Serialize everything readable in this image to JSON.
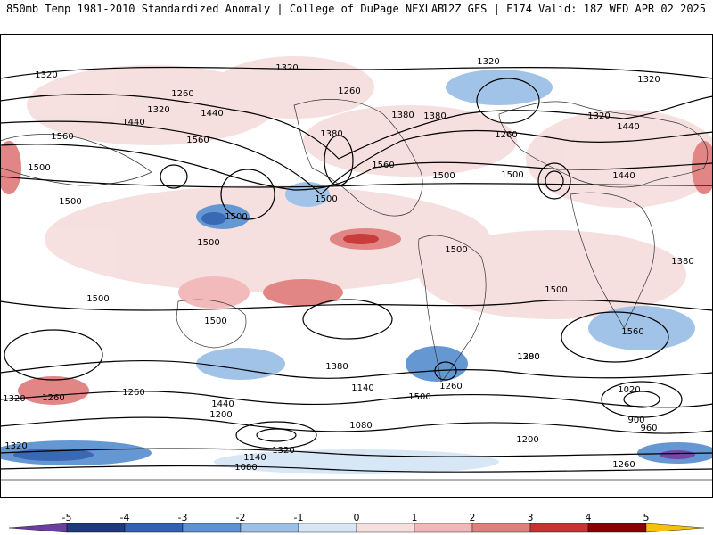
{
  "header": {
    "left": "850mb Temp 1981-2010 Standardized Anomaly | College of DuPage NEXLAB",
    "right": "12Z GFS | F174 Valid: 18Z WED APR 02 2025"
  },
  "legend": {
    "ticks": [
      "-5",
      "-4",
      "-3",
      "-2",
      "-1",
      "0",
      "1",
      "2",
      "3",
      "4",
      "5"
    ],
    "colors": [
      "#6a3fa0",
      "#1f3a7a",
      "#2f62b0",
      "#5d92d0",
      "#9cc0e6",
      "#d6e6f6",
      "#f6dede",
      "#f2b7b7",
      "#e07f7f",
      "#c83232",
      "#8b0000",
      "#f4c20d"
    ]
  },
  "map": {
    "contour_labels": [
      "1320",
      "1320",
      "1320",
      "1320",
      "1260",
      "1260",
      "1260",
      "1320",
      "1320",
      "1380",
      "1380",
      "1380",
      "1440",
      "1440",
      "1440",
      "1560",
      "1560",
      "1560",
      "1500",
      "1500",
      "1500",
      "1500",
      "1500",
      "1500",
      "1500",
      "1500",
      "1500",
      "1500",
      "1500",
      "1440",
      "1380",
      "1260",
      "1200",
      "1140",
      "1080",
      "1020",
      "960",
      "900",
      "1560",
      "1380",
      "1320",
      "1260",
      "1200",
      "1140",
      "1080",
      "1200",
      "1320",
      "1260",
      "1440",
      "1500",
      "1380",
      "1320",
      "1260"
    ]
  }
}
